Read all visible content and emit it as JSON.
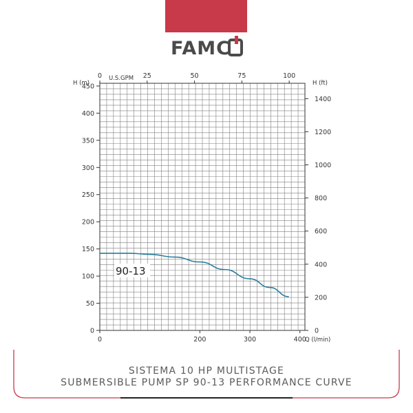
{
  "brand": {
    "name": "FAMCO",
    "bar_color": "#c8394a",
    "logo_dark": "#4a4a4a",
    "logo_accent": "#c8394a"
  },
  "caption": {
    "line1": "SISTEMA 10 HP MULTISTAGE",
    "line2": "SUBMERSIBLE PUMP SP 90-13 PERFORMANCE CURVE"
  },
  "chart_data": {
    "type": "line",
    "grid": true,
    "left_axis": {
      "label": "H (m)",
      "ticks": [
        0,
        50,
        100,
        150,
        200,
        250,
        300,
        350,
        400,
        450
      ],
      "range": [
        0,
        455
      ]
    },
    "right_axis": {
      "label": "H (ft)",
      "ticks": [
        0,
        200,
        400,
        600,
        800,
        1000,
        1200,
        1400
      ]
    },
    "top_axis": {
      "label": "U.S.GPM",
      "ticks": [
        0,
        25,
        50,
        75,
        100
      ]
    },
    "bottom_axis": {
      "label": "Q (l/min)",
      "ticks": [
        0,
        200,
        300,
        400
      ],
      "range": [
        0,
        410
      ]
    },
    "series": [
      {
        "name": "90-13",
        "color": "#2a7fa0",
        "x": [
          0,
          60,
          100,
          150,
          200,
          250,
          300,
          340,
          378
        ],
        "y": [
          142,
          142,
          140,
          135,
          126,
          112,
          95,
          79,
          62
        ]
      }
    ]
  }
}
